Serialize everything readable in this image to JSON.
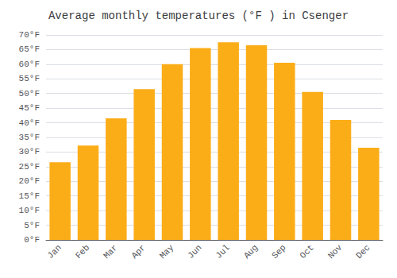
{
  "chart_data": {
    "type": "bar",
    "title": "Average monthly temperatures (°F ) in Csenger",
    "categories": [
      "Jan",
      "Feb",
      "Mar",
      "Apr",
      "May",
      "Jun",
      "Jul",
      "Aug",
      "Sep",
      "Oct",
      "Nov",
      "Dec"
    ],
    "values": [
      26.5,
      32.2,
      41.5,
      51.5,
      60.0,
      65.5,
      67.5,
      66.5,
      60.5,
      50.5,
      41.0,
      31.5
    ],
    "color": "#FBAD18",
    "ylim": [
      0,
      70
    ],
    "yticks": [
      {
        "value": 0,
        "label": "0°F"
      },
      {
        "value": 5,
        "label": "5°F"
      },
      {
        "value": 10,
        "label": "10°F"
      },
      {
        "value": 15,
        "label": "15°F"
      },
      {
        "value": 20,
        "label": "20°F"
      },
      {
        "value": 25,
        "label": "25°F"
      },
      {
        "value": 30,
        "label": "30°F"
      },
      {
        "value": 35,
        "label": "35°F"
      },
      {
        "value": 40,
        "label": "40°F"
      },
      {
        "value": 45,
        "label": "45°F"
      },
      {
        "value": 50,
        "label": "50°F"
      },
      {
        "value": 55,
        "label": "55°F"
      },
      {
        "value": 60,
        "label": "60°F"
      },
      {
        "value": 65,
        "label": "65°F"
      },
      {
        "value": 70,
        "label": "70°F"
      }
    ],
    "grid": true
  }
}
